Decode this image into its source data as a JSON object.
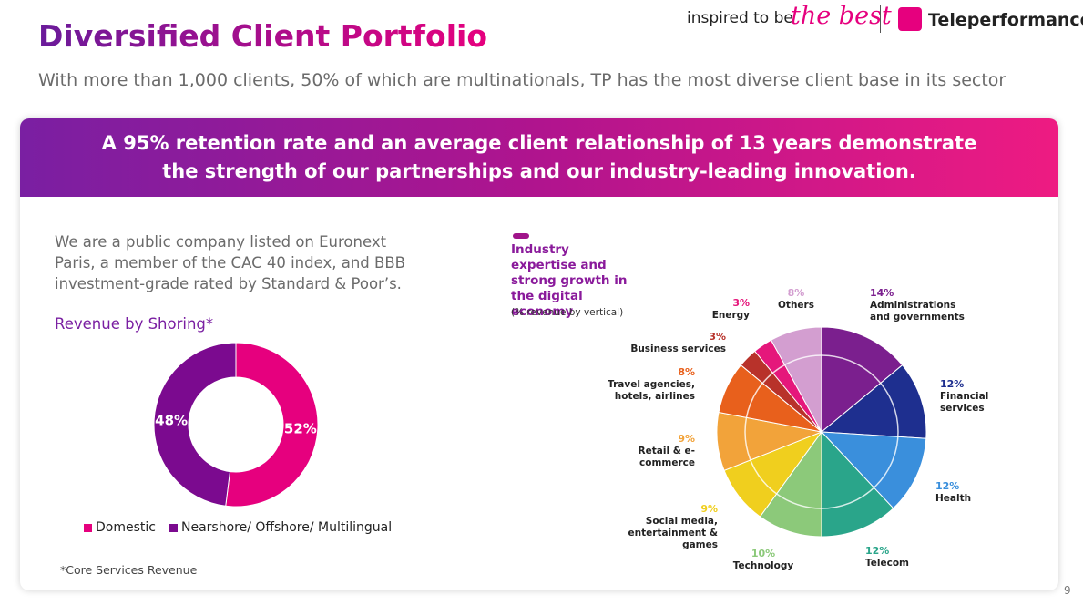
{
  "header": {
    "title": "Diversified Client Portfolio",
    "subtitle": "With more than 1,000 clients, 50% of which are multinationals, TP has the most diverse client base in its sector",
    "tagline": "inspired to be",
    "tagline_accent": "the best",
    "brand": "Teleperformance"
  },
  "banner": {
    "lines": [
      "A 95% retention rate and an average client relationship of 13 years demonstrate",
      "the strength of our partnerships and our industry-leading innovation."
    ]
  },
  "intro": "We are a public company listed on Euronext Paris, a member of the CAC 40 index, and BBB investment-grade rated by Standard & Poor’s.",
  "footnote": "*Core Services Revenue",
  "page_number": "9",
  "chart_data": [
    {
      "type": "donut",
      "title": "Revenue by Shoring*",
      "categories": [
        "Domestic",
        "Nearshore/ Offshore/ Multilingual"
      ],
      "values": [
        52,
        48
      ],
      "value_labels": [
        "52%",
        "48%"
      ],
      "colors": [
        "#e6007e",
        "#7b0a8f"
      ]
    },
    {
      "type": "pie",
      "title": "Industry expertise and strong growth in the digital economy",
      "subtitle": "(% revenue by vertical)",
      "categories": [
        "Administrations and governments",
        "Financial services",
        "Health",
        "Telecom",
        "Technology",
        "Social media, entertainment & games",
        "Retail & e-commerce",
        "Travel agencies, hotels, airlines",
        "Business services",
        "Energy",
        "Others"
      ],
      "values": [
        14,
        12,
        12,
        12,
        10,
        9,
        9,
        8,
        3,
        3,
        8
      ],
      "value_labels": [
        "14%",
        "12%",
        "12%",
        "12%",
        "10%",
        "9%",
        "9%",
        "8%",
        "3%",
        "3%",
        "8%"
      ],
      "colors": [
        "#7b1f8e",
        "#1e2f8f",
        "#3a8fdc",
        "#2aa58a",
        "#8cc97a",
        "#f0cf1e",
        "#f2a33a",
        "#e8601c",
        "#b8322a",
        "#e5177b",
        "#d39ed0"
      ]
    }
  ]
}
